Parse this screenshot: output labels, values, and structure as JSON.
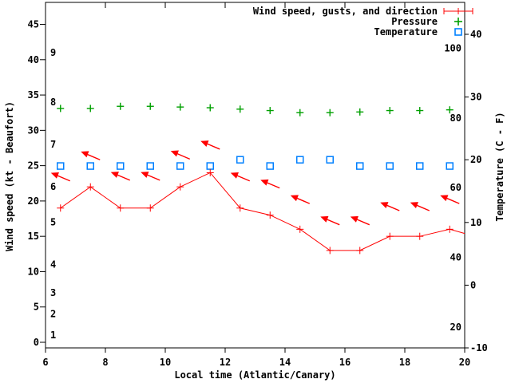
{
  "chart_data": {
    "type": "line",
    "xlabel": "Local time (Atlantic/Canary)",
    "ylabel_left": "Wind speed (kt - Beaufort)",
    "ylabel_right": "Temperature (C - F)",
    "x_range": [
      6,
      20
    ],
    "x_ticks": [
      "6",
      "8",
      "10",
      "12",
      "14",
      "16",
      "18",
      "20"
    ],
    "wind_axis_ticks": [
      "0",
      "5",
      "10",
      "15",
      "20",
      "25",
      "30",
      "35",
      "40",
      "45"
    ],
    "temp_axis_ticks_c": [
      "-10",
      "0",
      "10",
      "20",
      "30",
      "40"
    ],
    "beaufort_labels": [
      {
        "label": "1",
        "kt": 1
      },
      {
        "label": "2",
        "kt": 4
      },
      {
        "label": "3",
        "kt": 7
      },
      {
        "label": "4",
        "kt": 11
      },
      {
        "label": "5",
        "kt": 17
      },
      {
        "label": "6",
        "kt": 22
      },
      {
        "label": "7",
        "kt": 28
      },
      {
        "label": "8",
        "kt": 34
      },
      {
        "label": "9",
        "kt": 41
      }
    ],
    "fahrenheit_labels": [
      {
        "label": "20",
        "f": 20
      },
      {
        "label": "40",
        "f": 40
      },
      {
        "label": "60",
        "f": 60
      },
      {
        "label": "80",
        "f": 80
      },
      {
        "label": "100",
        "f": 100
      }
    ],
    "hours": [
      6.5,
      7.5,
      8.5,
      9.5,
      10.5,
      11.5,
      12.5,
      13.5,
      14.5,
      15.5,
      16.5,
      17.5,
      18.5,
      19.5
    ],
    "series": [
      {
        "name": "Wind speed, gusts, and direction",
        "color": "#ff0000",
        "wind_kt": [
          19,
          22,
          19,
          19,
          22,
          24,
          19,
          18,
          16,
          13,
          13,
          15,
          15,
          16
        ],
        "gust_kt": [
          23.4,
          26.4,
          23.5,
          23.5,
          26.5,
          27.9,
          23.4,
          22.4,
          20.2,
          17.2,
          17.2,
          19.2,
          19.2,
          20.2
        ],
        "edge_point": {
          "hour": 20,
          "kt": 15.4
        }
      },
      {
        "name": "Pressure",
        "color": "#00a000",
        "display_on_wind_axis": [
          33.1,
          33.1,
          33.4,
          33.4,
          33.3,
          33.2,
          33.0,
          32.8,
          32.5,
          32.5,
          32.6,
          32.8,
          32.8,
          32.9
        ]
      },
      {
        "name": "Temperature",
        "color": "#0080ff",
        "values_c": [
          19,
          19,
          19,
          19,
          19,
          19,
          20,
          19,
          20,
          20,
          19,
          19,
          19,
          19
        ]
      }
    ],
    "legend_position": "top-right",
    "grid": false,
    "frame_color": "#000000"
  }
}
